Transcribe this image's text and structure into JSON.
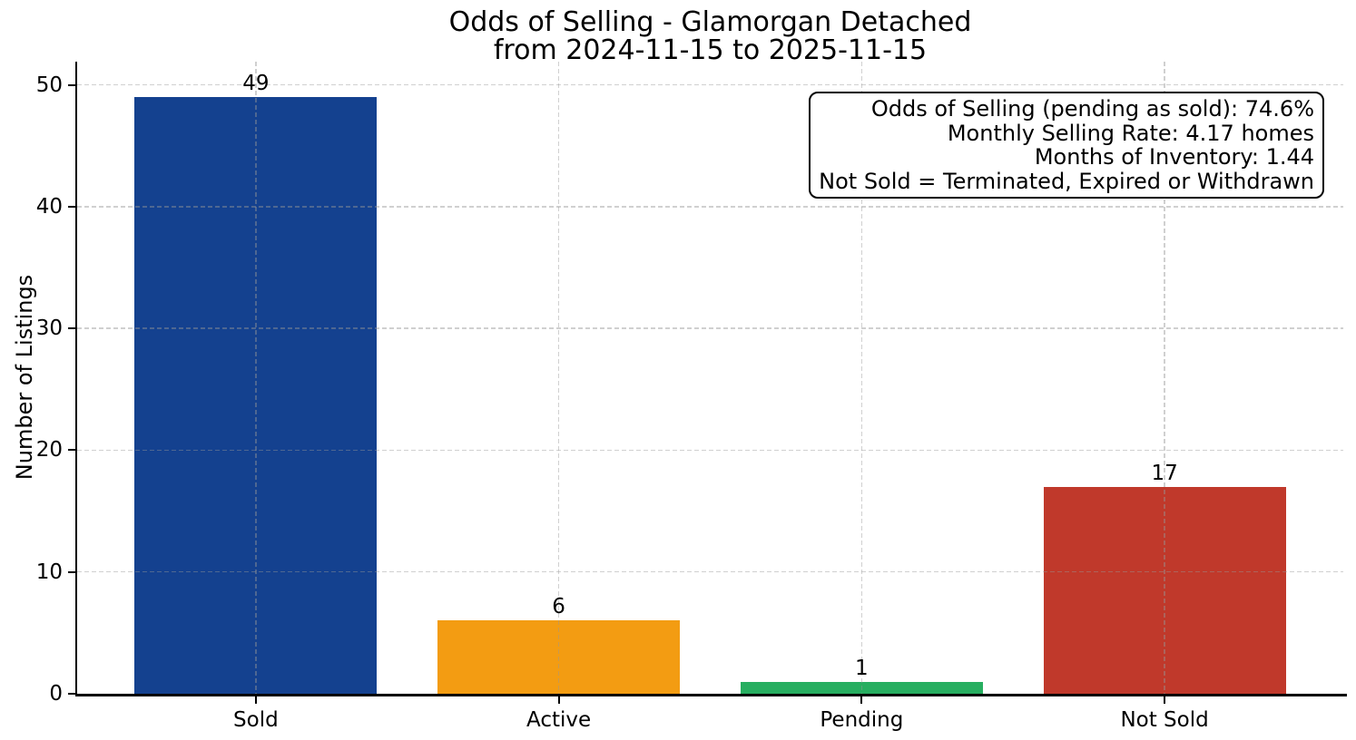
{
  "title": {
    "line1": "Odds of Selling - Glamorgan Detached",
    "line2": "from 2024-11-15 to 2025-11-15"
  },
  "chart_data": {
    "type": "bar",
    "title": "Odds of Selling - Glamorgan Detached from 2024-11-15 to 2025-11-15",
    "categories": [
      "Sold",
      "Active",
      "Pending",
      "Not Sold"
    ],
    "values": [
      49,
      6,
      1,
      17
    ],
    "value_labels": [
      "49",
      "6",
      "1",
      "17"
    ],
    "bar_colors": [
      "#14418F",
      "#F39C12",
      "#27AE60",
      "#C0392B"
    ],
    "xlabel": "",
    "ylabel": "Number of Listings",
    "yticks": [
      0,
      10,
      20,
      30,
      40,
      50
    ],
    "ylim": [
      0,
      51.9
    ],
    "grid": true,
    "grid_style": "dashed",
    "legend": "none"
  },
  "annotation": {
    "lines": [
      "Odds of Selling (pending as sold): 74.6%",
      "Monthly Selling Rate: 4.17 homes",
      "Months of Inventory: 1.44",
      "Not Sold = Terminated, Expired or Withdrawn"
    ]
  },
  "colors": {
    "background": "#ffffff",
    "text": "#000000",
    "spine": "#000000",
    "grid": "#d0d0d0"
  }
}
